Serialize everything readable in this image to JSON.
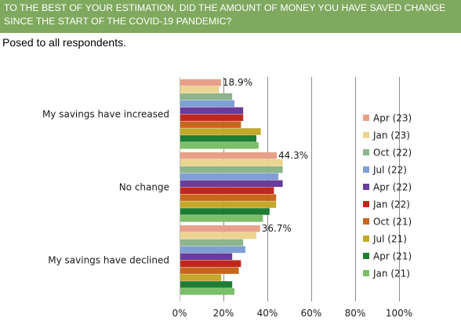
{
  "banner": {
    "title": "TO THE BEST OF YOUR ESTIMATION, DID THE AMOUNT OF MONEY YOU HAVE SAVED CHANGE SINCE THE START OF THE COVID-19 PANDEMIC?"
  },
  "subtitle": "Posed to all respondents.",
  "colors": {
    "banner_bg": "#7fa95f",
    "gridline": "#8c8c8c",
    "axis": "#bfbfbf"
  },
  "chart_data": {
    "type": "bar",
    "orientation": "horizontal",
    "categories": [
      "My savings have increased",
      "No change",
      "My savings have declined"
    ],
    "series": [
      {
        "name": "Apr (23)",
        "color": "#e8a088",
        "values": [
          18.9,
          44.3,
          36.7
        ]
      },
      {
        "name": "Jan (23)",
        "color": "#ecd590",
        "values": [
          18,
          47,
          35
        ]
      },
      {
        "name": "Oct (22)",
        "color": "#8db58a",
        "values": [
          24,
          47,
          29
        ]
      },
      {
        "name": "Jul (22)",
        "color": "#7f9fd6",
        "values": [
          25,
          45,
          30
        ]
      },
      {
        "name": "Apr (22)",
        "color": "#6a3d9a",
        "values": [
          29,
          47,
          24
        ]
      },
      {
        "name": "Jan (22)",
        "color": "#c0281e",
        "values": [
          29,
          43,
          28
        ]
      },
      {
        "name": "Oct (21)",
        "color": "#c8661e",
        "values": [
          28,
          44,
          27
        ]
      },
      {
        "name": "Jul (21)",
        "color": "#c4a82a",
        "values": [
          37,
          44,
          19
        ]
      },
      {
        "name": "Apr (21)",
        "color": "#1e7d32",
        "values": [
          35,
          41,
          24
        ]
      },
      {
        "name": "Jan (21)",
        "color": "#7cbf6a",
        "values": [
          36,
          38,
          25
        ]
      }
    ],
    "data_labels": [
      "18.9%",
      "44.3%",
      "36.7%"
    ],
    "xlim": [
      0,
      100
    ],
    "x_ticks": [
      "0%",
      "20%",
      "40%",
      "60%",
      "80%",
      "100%"
    ],
    "grid": true,
    "legend_position": "right"
  }
}
